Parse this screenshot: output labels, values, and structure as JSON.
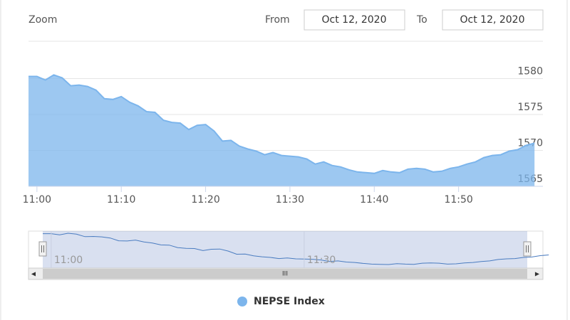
{
  "zoom_label": "Zoom",
  "from_label": "From",
  "from_date": "Oct 12, 2020",
  "to_label": "To",
  "to_date": "Oct 12, 2020",
  "chart_data": {
    "type": "area",
    "series": [
      {
        "name": "NEPSE Index",
        "color": "#7cb5ec",
        "values": [
          1580.3,
          1580.3,
          1579.8,
          1580.5,
          1580.1,
          1579.0,
          1579.1,
          1578.9,
          1578.4,
          1577.2,
          1577.1,
          1577.5,
          1576.7,
          1576.2,
          1575.4,
          1575.3,
          1574.2,
          1573.9,
          1573.8,
          1572.9,
          1573.5,
          1573.6,
          1572.7,
          1571.3,
          1571.4,
          1570.6,
          1570.2,
          1569.9,
          1569.4,
          1569.7,
          1569.3,
          1569.2,
          1569.1,
          1568.8,
          1568.1,
          1568.4,
          1567.9,
          1567.7,
          1567.3,
          1567.0,
          1566.9,
          1566.8,
          1567.2,
          1567.0,
          1566.9,
          1567.4,
          1567.5,
          1567.4,
          1567.0,
          1567.1,
          1567.5,
          1567.7,
          1568.1,
          1568.4,
          1569.0,
          1569.3,
          1569.4,
          1569.9,
          1570.1,
          1570.7,
          1571.0
        ]
      }
    ],
    "x": [
      "10:59",
      "11:00",
      "11:01",
      "11:02",
      "11:03",
      "11:04",
      "11:05",
      "11:06",
      "11:07",
      "11:08",
      "11:09",
      "11:10",
      "11:11",
      "11:12",
      "11:13",
      "11:14",
      "11:15",
      "11:16",
      "11:17",
      "11:18",
      "11:19",
      "11:20",
      "11:21",
      "11:22",
      "11:23",
      "11:24",
      "11:25",
      "11:26",
      "11:27",
      "11:28",
      "11:29",
      "11:30",
      "11:31",
      "11:32",
      "11:33",
      "11:34",
      "11:35",
      "11:36",
      "11:37",
      "11:38",
      "11:39",
      "11:40",
      "11:41",
      "11:42",
      "11:43",
      "11:44",
      "11:45",
      "11:46",
      "11:47",
      "11:48",
      "11:49",
      "11:50",
      "11:51",
      "11:52",
      "11:53",
      "11:54",
      "11:55",
      "11:56",
      "11:57",
      "11:58",
      "11:59"
    ],
    "xlim": [
      "10:59",
      "12:00"
    ],
    "xticks": [
      "11:00",
      "11:10",
      "11:20",
      "11:30",
      "11:40",
      "11:50"
    ],
    "ylim": [
      1565,
      1585
    ],
    "yticks": [
      1565,
      1570,
      1575,
      1580
    ],
    "grid": true
  }
}
